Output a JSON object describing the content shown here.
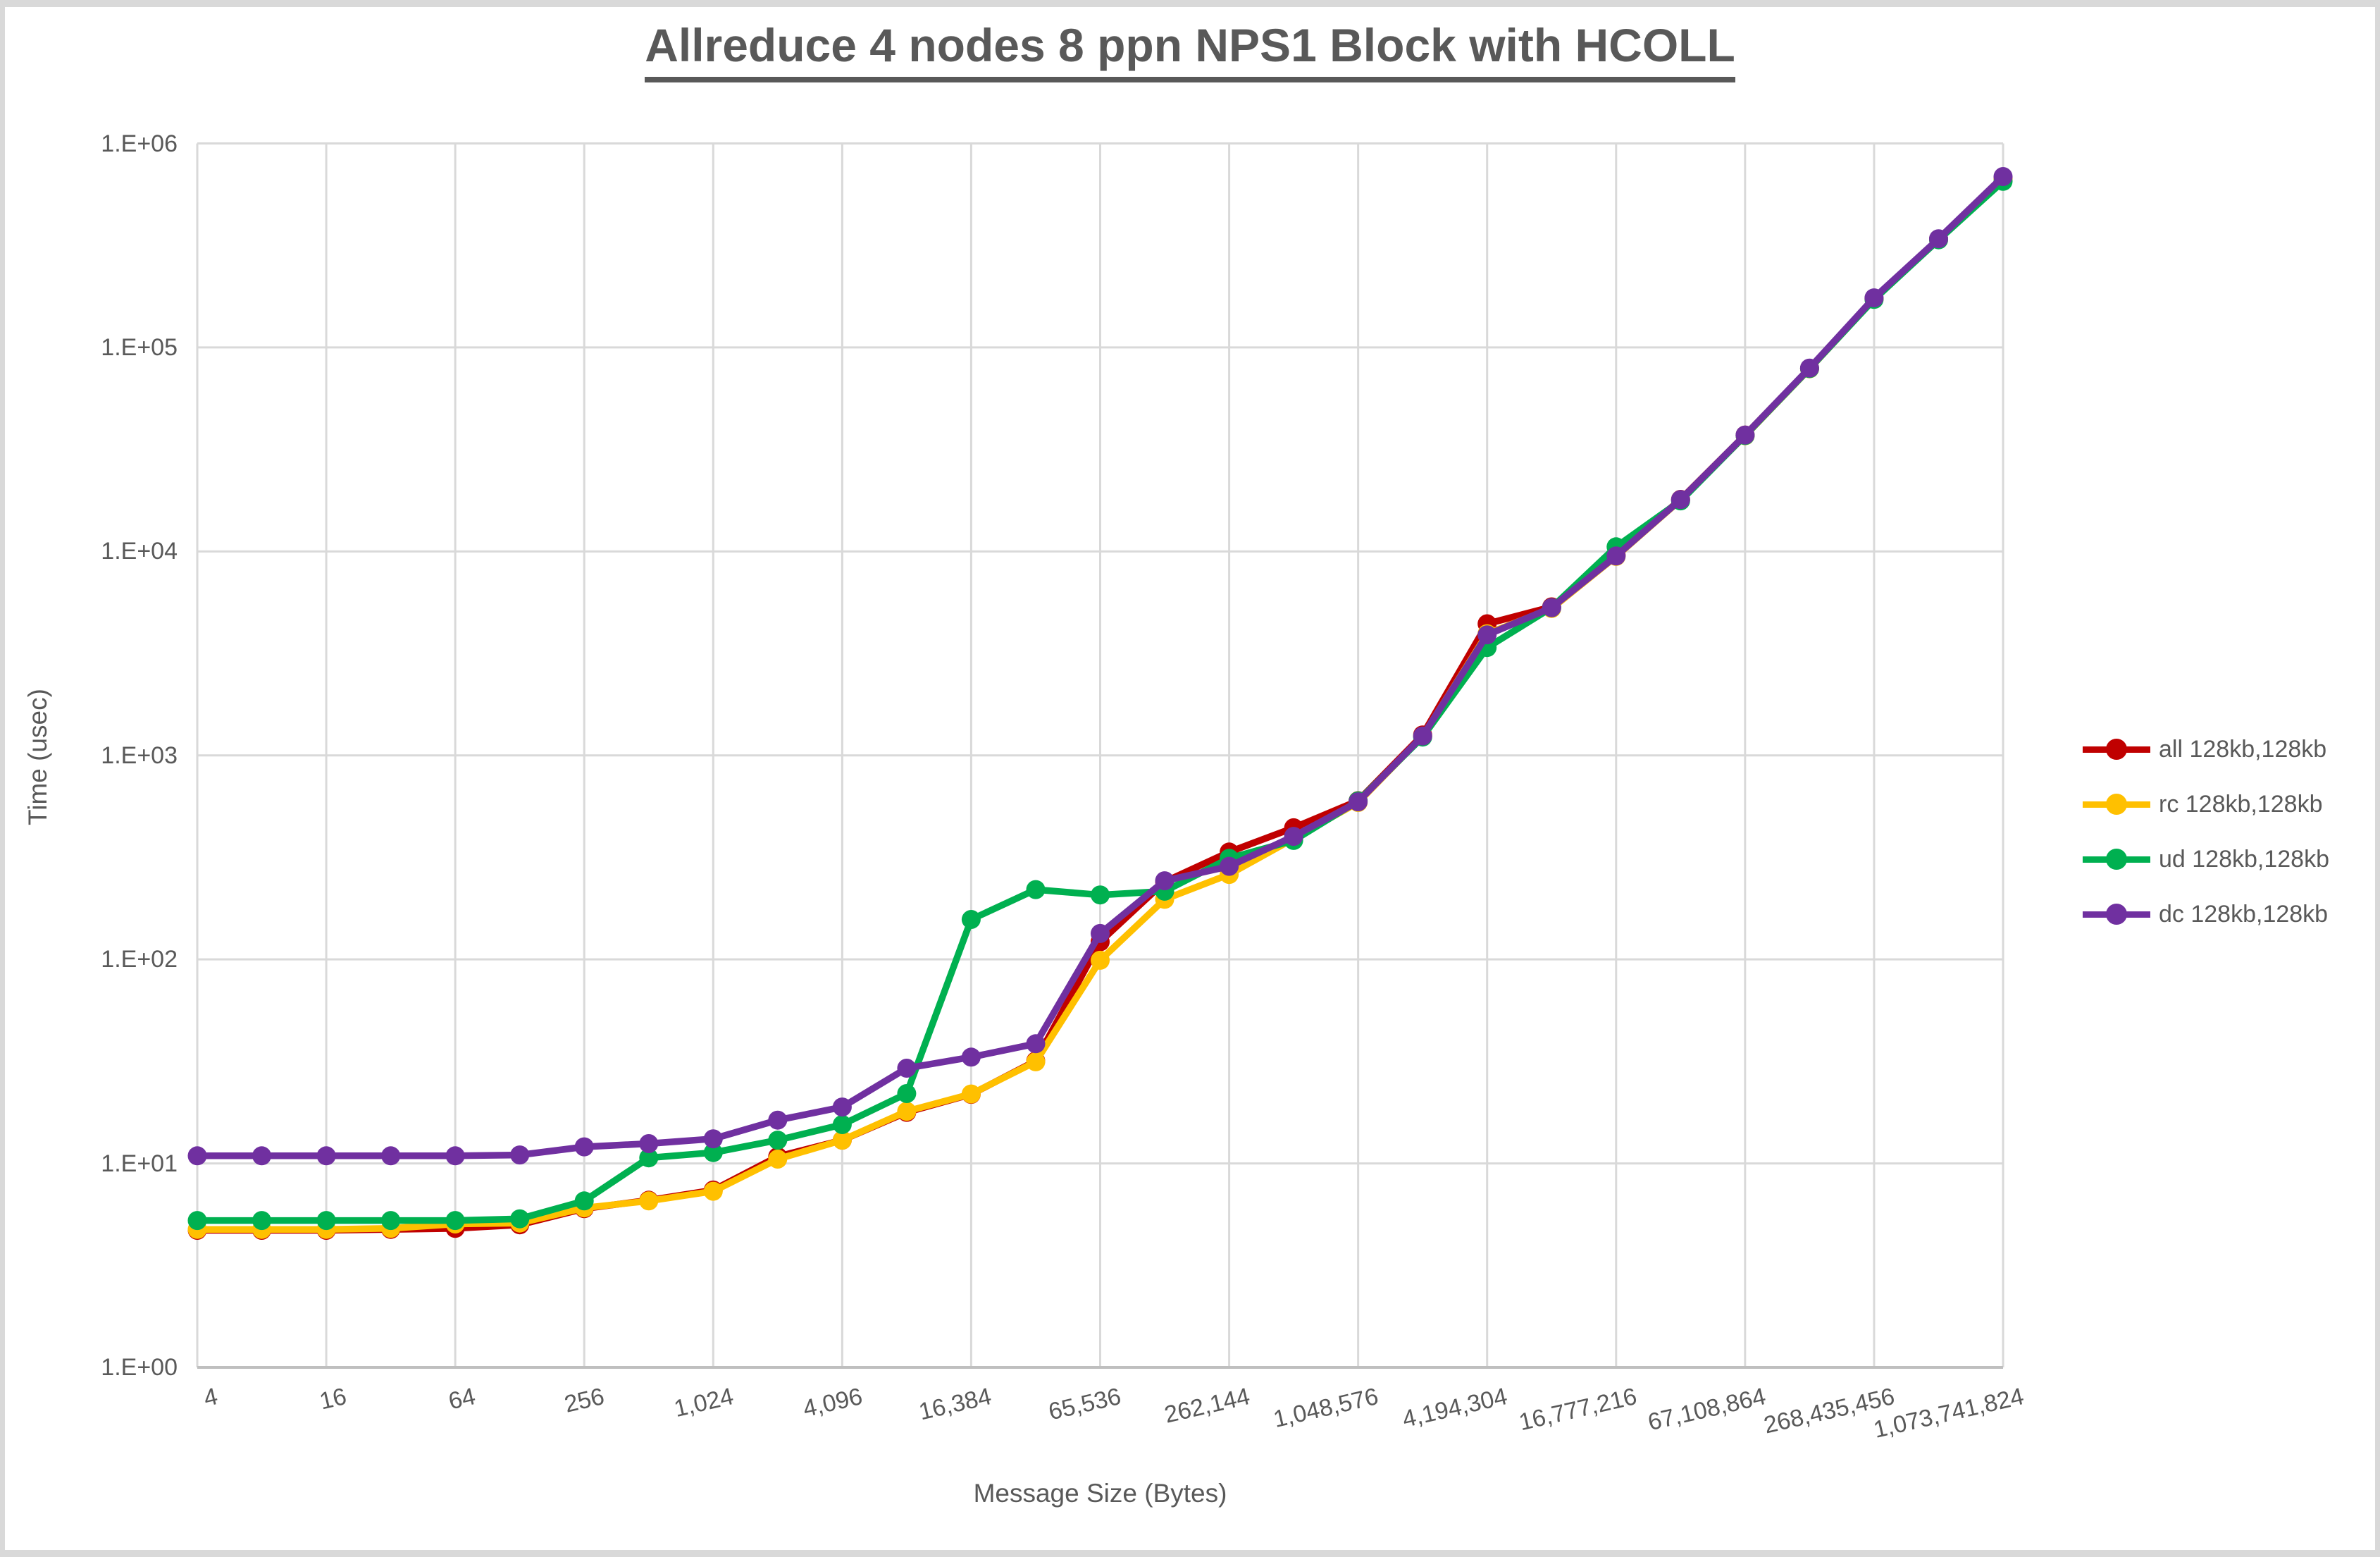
{
  "window": {
    "frame_color": "#d9d9d9",
    "background": "#ffffff"
  },
  "title": "Allreduce 4 nodes 8 ppn NPS1 Block with HCOLL",
  "axes": {
    "x_title": "Message Size (Bytes)",
    "y_title": "Time (usec)"
  },
  "style": {
    "grid_color": "#d9d9d9",
    "axis_color": "#bfbfbf",
    "text_color": "#595959",
    "line_width": 9.5,
    "marker_radius": 13.5
  },
  "chart_data": {
    "type": "line",
    "title": "Allreduce 4 nodes 8 ppn NPS1 Block with HCOLL",
    "xlabel": "Message Size (Bytes)",
    "ylabel": "Time (usec)",
    "x_scale": "log2",
    "y_scale": "log10",
    "xlim": [
      4,
      1073741824
    ],
    "ylim": [
      1,
      1000000
    ],
    "grid": true,
    "legend_position": "right",
    "x": [
      4,
      8,
      16,
      32,
      64,
      128,
      256,
      512,
      1024,
      2048,
      4096,
      8192,
      16384,
      32768,
      65536,
      131072,
      262144,
      524288,
      1048576,
      2097152,
      4194304,
      8388608,
      16777216,
      33554432,
      67108864,
      134217728,
      268435456,
      536870912,
      1073741824
    ],
    "x_ticks": [
      4,
      16,
      64,
      256,
      1024,
      4096,
      16384,
      65536,
      262144,
      1048576,
      4194304,
      16777216,
      67108864,
      268435456,
      1073741824
    ],
    "x_tick_labels": [
      "4",
      "16",
      "64",
      "256",
      "1,024",
      "4,096",
      "16,384",
      "65,536",
      "262,144",
      "1,048,576",
      "4,194,304",
      "16,777,216",
      "67,108,864",
      "268,435,456",
      "1,073,741,824"
    ],
    "y_tick_labels": [
      "1.E+00",
      "1.E+01",
      "1.E+02",
      "1.E+03",
      "1.E+04",
      "1.E+05",
      "1.E+06"
    ],
    "series": [
      {
        "name": "all 128kb,128kb",
        "color": "#C00000",
        "values": [
          4.7,
          4.7,
          4.7,
          4.75,
          4.8,
          5.0,
          6.0,
          6.6,
          7.4,
          10.8,
          13.0,
          17.8,
          21.8,
          31.8,
          122,
          240,
          336,
          442,
          600,
          1260,
          4420,
          5350,
          9600,
          18000,
          37200,
          79000,
          174000,
          340000,
          672000
        ]
      },
      {
        "name": "rc 128kb,128kb",
        "color": "#FFC000",
        "values": [
          4.75,
          4.75,
          4.75,
          4.8,
          5.05,
          5.1,
          6.05,
          6.55,
          7.3,
          10.5,
          13.0,
          18.0,
          21.9,
          31.5,
          99,
          197,
          261,
          391,
          588,
          1240,
          3950,
          5250,
          9450,
          17900,
          36900,
          78600,
          172500,
          338000,
          665000
        ]
      },
      {
        "name": "ud 128kb,128kb",
        "color": "#00B050",
        "values": [
          5.25,
          5.25,
          5.25,
          5.25,
          5.25,
          5.35,
          6.55,
          10.65,
          11.3,
          13.0,
          15.5,
          22.0,
          157,
          220,
          207,
          216,
          313,
          383,
          598,
          1230,
          3380,
          5300,
          10530,
          17700,
          37000,
          78800,
          172000,
          337000,
          652000
        ]
      },
      {
        "name": "dc 128kb,128kb",
        "color": "#7030A0",
        "values": [
          10.9,
          10.9,
          10.9,
          10.9,
          10.9,
          11.0,
          12.05,
          12.5,
          13.2,
          16.3,
          18.9,
          29.3,
          33.2,
          38.6,
          134,
          243,
          286,
          401,
          592,
          1245,
          3900,
          5300,
          9500,
          17950,
          37200,
          79200,
          175000,
          341000,
          688000
        ]
      }
    ]
  }
}
